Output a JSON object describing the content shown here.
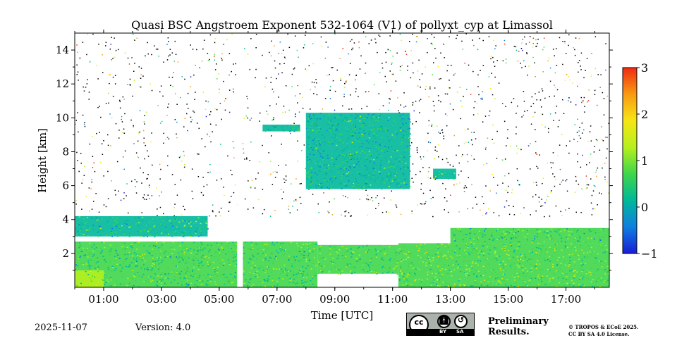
{
  "chart_data": {
    "type": "heatmap",
    "title": "Quasi BSC Angstroem Exponent 532-1064 (V1) of pollyxt_cyp at Limassol",
    "xlabel": "Time [UTC]",
    "ylabel": "Height [km]",
    "xlim": [
      0.0,
      18.5
    ],
    "ylim": [
      0,
      15
    ],
    "x_ticks": [
      {
        "value": 1,
        "label": "01:00"
      },
      {
        "value": 3,
        "label": "03:00"
      },
      {
        "value": 5,
        "label": "05:00"
      },
      {
        "value": 7,
        "label": "07:00"
      },
      {
        "value": 9,
        "label": "09:00"
      },
      {
        "value": 11,
        "label": "11:00"
      },
      {
        "value": 13,
        "label": "13:00"
      },
      {
        "value": 15,
        "label": "15:00"
      },
      {
        "value": 17,
        "label": "17:00"
      }
    ],
    "y_ticks": [
      {
        "value": 2,
        "label": "2"
      },
      {
        "value": 4,
        "label": "4"
      },
      {
        "value": 6,
        "label": "6"
      },
      {
        "value": 8,
        "label": "8"
      },
      {
        "value": 10,
        "label": "10"
      },
      {
        "value": 12,
        "label": "12"
      },
      {
        "value": 14,
        "label": "14"
      }
    ],
    "colorbar": {
      "min": -1,
      "max": 3,
      "colormap": [
        "#1a1cd6",
        "#0e7fe0",
        "#00b89a",
        "#3fd64a",
        "#b6f01e",
        "#f6e614",
        "#f99a12",
        "#f02a10"
      ],
      "ticks": [
        {
          "value": -1,
          "label": "−1"
        },
        {
          "value": 0,
          "label": "0"
        },
        {
          "value": 1,
          "label": "1"
        },
        {
          "value": 2,
          "label": "2"
        },
        {
          "value": 3,
          "label": "3"
        }
      ]
    },
    "gaps": [
      [
        5.62,
        5.82
      ]
    ],
    "regions": [
      {
        "name": "boundary-layer-morning",
        "t_start": 0.0,
        "t_end": 8.4,
        "h_bottom": 0.0,
        "h_top": 2.7,
        "value": 0.6
      },
      {
        "name": "low-band-morning",
        "t_start": 0.0,
        "t_end": 1.0,
        "h_bottom": 0.0,
        "h_top": 1.0,
        "value": 1.0
      },
      {
        "name": "lofted-layer-morning",
        "t_start": 0.0,
        "t_end": 4.6,
        "h_bottom": 3.0,
        "h_top": 4.2,
        "value": 0.4
      },
      {
        "name": "boundary-layer-midday",
        "t_start": 8.4,
        "t_end": 11.2,
        "h_bottom": 0.8,
        "h_top": 2.5,
        "value": 0.7
      },
      {
        "name": "boundary-layer-afternoon",
        "t_start": 11.2,
        "t_end": 18.5,
        "h_bottom": 0.0,
        "h_top": 2.6,
        "value": 0.9
      },
      {
        "name": "lofted-layer-afternoon",
        "t_start": 13.0,
        "t_end": 18.5,
        "h_bottom": 2.6,
        "h_top": 3.5,
        "value": 0.5
      },
      {
        "name": "elevated-dust-layer",
        "t_start": 8.0,
        "t_end": 11.6,
        "h_bottom": 5.8,
        "h_top": 10.3,
        "value": 0.3
      },
      {
        "name": "thin-layer-0630",
        "t_start": 6.5,
        "t_end": 7.8,
        "h_bottom": 9.2,
        "h_top": 9.6,
        "value": 0.2
      },
      {
        "name": "thin-layer-1300",
        "t_start": 12.4,
        "t_end": 13.2,
        "h_bottom": 6.4,
        "h_top": 7.0,
        "value": 0.4
      }
    ]
  },
  "footer": {
    "date": "2025-11-07",
    "version": "Version: 4.0",
    "preliminary_line1": "Preliminary",
    "preliminary_line2": "Results.",
    "copyright_line1": "© TROPOS & ECoE 2025.",
    "copyright_line2": "CC BY SA 4.0 License.",
    "license_badge": {
      "by": "BY",
      "sa": "SA",
      "cc": "cc"
    }
  },
  "colors": {
    "preliminary": "#e8302a",
    "noise": "#000000"
  }
}
